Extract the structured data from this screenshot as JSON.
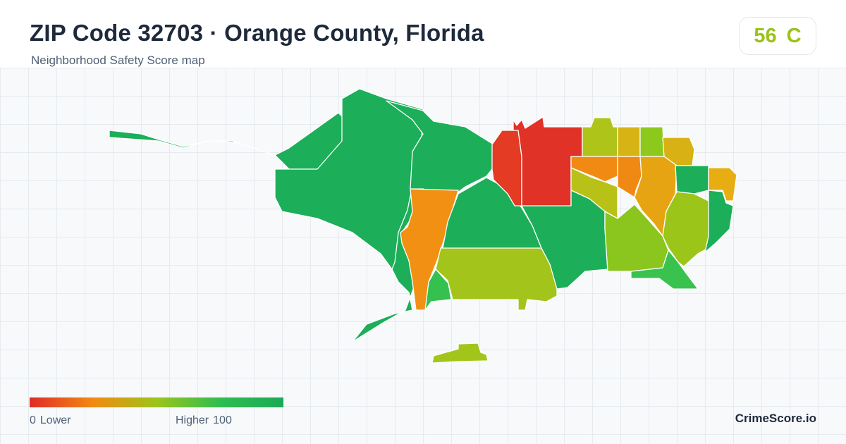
{
  "header": {
    "title": "ZIP Code 32703 · Orange County, Florida",
    "subtitle": "Neighborhood Safety Score map"
  },
  "score": {
    "value": "56",
    "grade": "C",
    "color": "#9bc21a"
  },
  "legend": {
    "min_value": "0",
    "min_label": "Lower",
    "max_label": "Higher",
    "max_value": "100",
    "colors": [
      "#e02a27",
      "#f28a12",
      "#9dc41a",
      "#2ebd50",
      "#1aaa58"
    ]
  },
  "brand": "CrimeScore.io",
  "map": {
    "regions": [
      {
        "id": "west-tract",
        "color": "#1cae59"
      },
      {
        "id": "northwest-tract",
        "color": "#1cae59"
      },
      {
        "id": "west-central-tract",
        "color": "#1cae59"
      },
      {
        "id": "west-strip-tract",
        "color": "#f19013"
      },
      {
        "id": "central-tract",
        "color": "#1cae59"
      },
      {
        "id": "south-central-tract",
        "color": "#a3c41a"
      },
      {
        "id": "south-small-tract",
        "color": "#35c050"
      },
      {
        "id": "north-red-west-tract",
        "color": "#e33b24"
      },
      {
        "id": "north-red-east-tract",
        "color": "#e03227"
      },
      {
        "id": "north-yellowgreen-tract",
        "color": "#aec418"
      },
      {
        "id": "north-yellow-tract",
        "color": "#d6b414"
      },
      {
        "id": "north-green-tract",
        "color": "#8cc91c"
      },
      {
        "id": "northeast-yellow-tract",
        "color": "#d8b114"
      },
      {
        "id": "central-orange-tract",
        "color": "#f08a13"
      },
      {
        "id": "central-yellowgreen-tract",
        "color": "#b8c117"
      },
      {
        "id": "central-orange-2-tract",
        "color": "#ef8914"
      },
      {
        "id": "central-gold-tract",
        "color": "#e6a412"
      },
      {
        "id": "east-green-tract",
        "color": "#1cae59"
      },
      {
        "id": "east-gold-tract",
        "color": "#e8ad12"
      },
      {
        "id": "east-yellowgreen-tract",
        "color": "#9cc51a"
      },
      {
        "id": "far-east-tract",
        "color": "#1cae59"
      },
      {
        "id": "south-east-tract",
        "color": "#1cae59"
      },
      {
        "id": "southeast-lightgreen-tract",
        "color": "#8bc61e"
      },
      {
        "id": "southeast-bright-tract",
        "color": "#3ac24e"
      },
      {
        "id": "island-tract",
        "color": "#a2c51a"
      }
    ]
  }
}
